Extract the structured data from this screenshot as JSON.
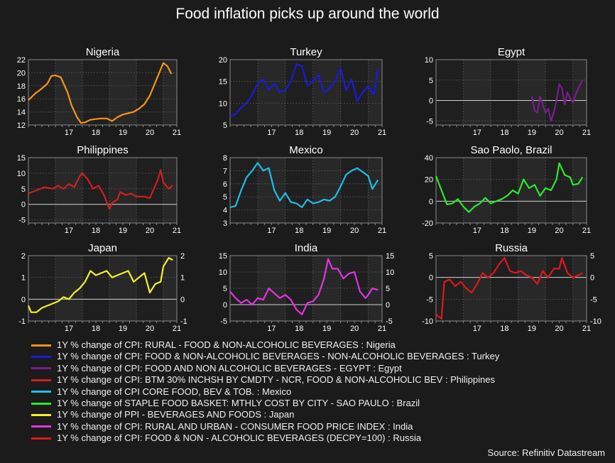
{
  "title": "Food inflation picks up around the world",
  "source": "Source: Refinitiv Datastream",
  "chart_data": [
    {
      "type": "line",
      "title": "Nigeria",
      "color": "#f7941d",
      "xlim": [
        2016.0,
        2021.5
      ],
      "ylim": [
        12,
        22
      ],
      "yticks": [
        12,
        14,
        16,
        18,
        20,
        22
      ],
      "xtick_labels": [
        "17",
        "18",
        "19",
        "20",
        "21"
      ],
      "right_axis": false,
      "x": [
        2016.0,
        2016.25,
        2016.5,
        2016.7,
        2016.85,
        2017.0,
        2017.2,
        2017.45,
        2017.6,
        2017.8,
        2017.95,
        2018.1,
        2018.3,
        2018.5,
        2018.7,
        2018.9,
        2019.1,
        2019.3,
        2019.5,
        2019.7,
        2019.9,
        2020.1,
        2020.3,
        2020.5,
        2020.7,
        2020.85,
        2021.0,
        2021.15,
        2021.3
      ],
      "values": [
        15.8,
        16.8,
        17.6,
        18.3,
        19.5,
        19.6,
        19.3,
        17.0,
        15.0,
        13.2,
        12.3,
        12.4,
        12.8,
        12.9,
        13.0,
        13.0,
        12.6,
        13.2,
        13.6,
        13.8,
        14.0,
        14.5,
        15.2,
        16.5,
        18.5,
        20.0,
        21.5,
        21.0,
        19.8
      ]
    },
    {
      "type": "line",
      "title": "Turkey",
      "color": "#1a1adb",
      "xlim": [
        2016.0,
        2021.5
      ],
      "ylim": [
        5,
        20
      ],
      "yticks": [
        5,
        10,
        15,
        20
      ],
      "xtick_labels": [
        "17",
        "18",
        "19",
        "20",
        "21"
      ],
      "right_axis": false,
      "x": [
        2016.0,
        2016.2,
        2016.4,
        2016.6,
        2016.8,
        2017.0,
        2017.2,
        2017.4,
        2017.6,
        2017.8,
        2018.0,
        2018.2,
        2018.4,
        2018.6,
        2018.8,
        2019.0,
        2019.2,
        2019.4,
        2019.6,
        2019.8,
        2020.0,
        2020.2,
        2020.4,
        2020.6,
        2020.8,
        2021.0,
        2021.2,
        2021.35
      ],
      "values": [
        7.0,
        7.5,
        9.0,
        10.0,
        12.0,
        14.5,
        15.5,
        13.0,
        14.5,
        12.5,
        13.0,
        15.0,
        19.0,
        18.5,
        14.0,
        15.0,
        16.5,
        12.5,
        13.5,
        15.0,
        18.0,
        13.0,
        15.5,
        10.5,
        12.5,
        14.0,
        12.0,
        18.0
      ]
    },
    {
      "type": "line",
      "title": "Egypt",
      "color": "#7a1f8a",
      "xlim": [
        2016.0,
        2021.5
      ],
      "ylim": [
        -6,
        10
      ],
      "yticks": [
        -5,
        0,
        5,
        10
      ],
      "xtick_labels": [
        "17",
        "18",
        "19",
        "20",
        "21"
      ],
      "right_axis": false,
      "x": [
        2019.5,
        2019.6,
        2019.7,
        2019.8,
        2019.9,
        2020.0,
        2020.1,
        2020.2,
        2020.3,
        2020.4,
        2020.5,
        2020.6,
        2020.7,
        2020.8,
        2020.9,
        2021.0,
        2021.1,
        2021.2,
        2021.35
      ],
      "values": [
        1.0,
        -2.5,
        -3.0,
        1.0,
        -1.0,
        -3.0,
        -2.0,
        -5.0,
        -3.0,
        0.0,
        4.0,
        3.0,
        -1.0,
        2.0,
        0.5,
        -0.5,
        1.5,
        3.0,
        5.0
      ]
    },
    {
      "type": "line",
      "title": "Philippines",
      "color": "#d11f1f",
      "xlim": [
        2016.0,
        2021.5
      ],
      "ylim": [
        -6,
        15
      ],
      "yticks": [
        -5,
        0,
        5,
        10,
        15
      ],
      "xtick_labels": [
        "17",
        "18",
        "19",
        "20",
        "21"
      ],
      "right_axis": false,
      "x": [
        2016.0,
        2016.3,
        2016.6,
        2016.9,
        2017.1,
        2017.3,
        2017.5,
        2017.7,
        2017.9,
        2018.0,
        2018.2,
        2018.4,
        2018.6,
        2018.8,
        2019.0,
        2019.1,
        2019.3,
        2019.4,
        2019.6,
        2019.8,
        2020.0,
        2020.3,
        2020.5,
        2020.6,
        2020.8,
        2020.9,
        2021.0,
        2021.2,
        2021.35
      ],
      "values": [
        3.5,
        4.5,
        5.5,
        5.0,
        6.0,
        5.0,
        6.5,
        5.5,
        9.0,
        10.0,
        8.0,
        5.0,
        6.0,
        3.0,
        -1.5,
        0.5,
        1.5,
        4.0,
        3.0,
        3.5,
        2.5,
        2.5,
        2.0,
        4.0,
        8.0,
        11.0,
        7.0,
        5.0,
        6.0
      ]
    },
    {
      "type": "line",
      "title": "Mexico",
      "color": "#1ebfe6",
      "xlim": [
        2016.0,
        2021.5
      ],
      "ylim": [
        3,
        8
      ],
      "yticks": [
        3,
        4,
        5,
        6,
        7,
        8
      ],
      "xtick_labels": [
        "17",
        "18",
        "19",
        "20",
        "21"
      ],
      "right_axis": false,
      "x": [
        2016.0,
        2016.2,
        2016.4,
        2016.6,
        2016.8,
        2017.0,
        2017.2,
        2017.4,
        2017.6,
        2017.8,
        2018.0,
        2018.2,
        2018.4,
        2018.6,
        2018.8,
        2019.0,
        2019.2,
        2019.4,
        2019.6,
        2019.8,
        2020.0,
        2020.2,
        2020.4,
        2020.6,
        2020.8,
        2021.0,
        2021.15,
        2021.35
      ],
      "values": [
        4.2,
        4.3,
        5.5,
        6.5,
        7.0,
        7.6,
        7.0,
        7.2,
        5.5,
        4.7,
        5.3,
        4.6,
        4.5,
        4.2,
        4.8,
        4.5,
        4.6,
        4.8,
        4.7,
        5.0,
        5.8,
        6.7,
        7.0,
        7.2,
        6.9,
        6.6,
        5.6,
        6.3
      ]
    },
    {
      "type": "line",
      "title": "Sao Paolo, Brazil",
      "color": "#2ee82e",
      "xlim": [
        2016.0,
        2021.5
      ],
      "ylim": [
        -20,
        40
      ],
      "yticks": [
        -20,
        0,
        20,
        40
      ],
      "xtick_labels": [
        "17",
        "18",
        "19",
        "20",
        "21"
      ],
      "right_axis": false,
      "x": [
        2016.0,
        2016.2,
        2016.4,
        2016.6,
        2016.8,
        2017.0,
        2017.2,
        2017.4,
        2017.6,
        2017.8,
        2018.0,
        2018.2,
        2018.4,
        2018.6,
        2018.8,
        2019.0,
        2019.2,
        2019.4,
        2019.6,
        2019.8,
        2020.0,
        2020.2,
        2020.4,
        2020.5,
        2020.7,
        2020.9,
        2021.0,
        2021.2,
        2021.35
      ],
      "values": [
        23.0,
        10.0,
        -3.0,
        -2.0,
        2.0,
        -5.0,
        -10.0,
        -5.0,
        -2.0,
        3.0,
        -2.0,
        0.0,
        2.0,
        5.0,
        10.0,
        7.0,
        20.0,
        12.0,
        15.0,
        5.0,
        12.0,
        10.0,
        20.0,
        35.0,
        24.0,
        22.0,
        15.0,
        16.0,
        22.0
      ]
    },
    {
      "type": "line",
      "title": "Japan",
      "color": "#f5f02a",
      "xlim": [
        2016.0,
        2021.5
      ],
      "ylim": [
        -1,
        2
      ],
      "yticks": [
        -1,
        0,
        1,
        2
      ],
      "xtick_labels": [
        "17",
        "18",
        "19",
        "20",
        "21"
      ],
      "right_axis": true,
      "x": [
        2016.0,
        2016.1,
        2016.3,
        2016.5,
        2016.7,
        2016.9,
        2017.1,
        2017.3,
        2017.5,
        2017.7,
        2017.9,
        2018.1,
        2018.3,
        2018.5,
        2018.7,
        2018.9,
        2019.1,
        2019.3,
        2019.5,
        2019.7,
        2019.9,
        2020.1,
        2020.3,
        2020.5,
        2020.7,
        2020.9,
        2021.0,
        2021.2,
        2021.35
      ],
      "values": [
        -0.3,
        -0.6,
        -0.6,
        -0.4,
        -0.3,
        -0.2,
        -0.1,
        0.1,
        0.0,
        0.3,
        0.5,
        0.8,
        1.3,
        1.1,
        1.2,
        1.3,
        1.0,
        1.1,
        1.2,
        1.3,
        0.8,
        1.0,
        1.2,
        0.3,
        0.7,
        0.8,
        1.5,
        1.9,
        1.8
      ]
    },
    {
      "type": "line",
      "title": "India",
      "color": "#e632e6",
      "xlim": [
        2016.0,
        2021.5
      ],
      "ylim": [
        -5,
        15
      ],
      "yticks": [
        -5,
        0,
        5,
        10,
        15
      ],
      "xtick_labels": [
        "17",
        "18",
        "19",
        "20",
        "21"
      ],
      "right_axis": true,
      "x": [
        2016.0,
        2016.2,
        2016.4,
        2016.6,
        2016.8,
        2017.0,
        2017.2,
        2017.4,
        2017.6,
        2017.8,
        2018.0,
        2018.2,
        2018.4,
        2018.6,
        2018.8,
        2019.0,
        2019.2,
        2019.4,
        2019.55,
        2019.7,
        2019.9,
        2020.1,
        2020.3,
        2020.5,
        2020.7,
        2020.9,
        2021.0,
        2021.15,
        2021.35
      ],
      "values": [
        4.0,
        2.0,
        0.5,
        1.5,
        0.0,
        2.0,
        1.5,
        5.0,
        3.5,
        2.0,
        3.0,
        1.5,
        -1.5,
        -3.0,
        0.5,
        1.0,
        3.0,
        8.0,
        14.0,
        11.0,
        11.0,
        8.0,
        9.5,
        10.0,
        4.0,
        2.0,
        3.0,
        5.0,
        4.5
      ]
    },
    {
      "type": "line",
      "title": "Russia",
      "color": "#e01818",
      "xlim": [
        2016.0,
        2021.5
      ],
      "ylim": [
        -10,
        5
      ],
      "yticks": [
        -10,
        -5,
        0,
        5
      ],
      "xtick_labels": [
        "17",
        "18",
        "19",
        "20",
        "21"
      ],
      "right_axis": true,
      "x": [
        2016.0,
        2016.2,
        2016.3,
        2016.5,
        2016.7,
        2016.9,
        2017.1,
        2017.3,
        2017.5,
        2017.7,
        2017.9,
        2018.1,
        2018.3,
        2018.5,
        2018.7,
        2018.9,
        2019.1,
        2019.3,
        2019.5,
        2019.7,
        2019.9,
        2020.1,
        2020.3,
        2020.5,
        2020.6,
        2020.8,
        2021.0,
        2021.2,
        2021.35
      ],
      "values": [
        -8.5,
        -9.5,
        -1.0,
        -0.5,
        -2.0,
        -1.0,
        -2.5,
        -3.5,
        -1.5,
        1.0,
        0.0,
        1.0,
        3.0,
        4.5,
        1.5,
        1.0,
        1.5,
        0.5,
        0.0,
        -1.5,
        1.5,
        0.0,
        2.0,
        2.0,
        4.5,
        1.0,
        0.0,
        0.5,
        1.0
      ]
    }
  ],
  "legend": [
    {
      "label": "1Y % change of CPI: RURAL - FOOD & NON-ALCOHOLIC BEVERAGES : Nigeria",
      "color": "#f7941d"
    },
    {
      "label": "1Y % change of CPI: FOOD & NON-ALCOHOLIC BEVERAGES - NON-ALCOHOLIC BEVERAGES : Turkey",
      "color": "#1a1adb"
    },
    {
      "label": "1Y % change of CPI: FOOD AND NON ALCOHOLIC BEVERAGES - EGYPT : Egypt",
      "color": "#7a1f8a"
    },
    {
      "label": "1Y % change of CPI: BTM 30% INCHSH BY CMDTY - NCR, FOOD & NON-ALCOHOLIC BEV : Philippines",
      "color": "#d11f1f"
    },
    {
      "label": "1Y % change of CPI CORE FOOD, BEV & TOB. : Mexico",
      "color": "#1ebfe6"
    },
    {
      "label": "1Y % change of STAPLE FOOD BASKET: MTHLY COST BY CITY - SAO PAULO : Brazil",
      "color": "#2ee82e"
    },
    {
      "label": "1Y % change of PPI - BEVERAGES AND FOODS : Japan",
      "color": "#f5f02a"
    },
    {
      "label": "1Y % change of CPI: RURAL AND URBAN - CONSUMER FOOD PRICE INDEX : India",
      "color": "#e632e6"
    },
    {
      "label": "1Y % change of CPI: FOOD & NON - ALCOHOLIC BEVERAGES (DECPY=100) : Russia",
      "color": "#e01818"
    }
  ]
}
